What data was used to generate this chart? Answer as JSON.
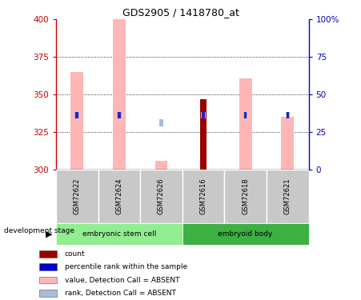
{
  "title": "GDS2905 / 1418780_at",
  "samples": [
    "GSM72622",
    "GSM72624",
    "GSM72626",
    "GSM72616",
    "GSM72618",
    "GSM72621"
  ],
  "ylim_left": [
    300,
    400
  ],
  "ylim_right": [
    0,
    100
  ],
  "yticks_left": [
    300,
    325,
    350,
    375,
    400
  ],
  "yticks_right": [
    0,
    25,
    50,
    75,
    100
  ],
  "ytick_labels_right": [
    "0",
    "25",
    "50",
    "75",
    "100%"
  ],
  "pink_bar_color": "#FFB6B6",
  "red_bar_color": "#990000",
  "blue_square_color": "#2222CC",
  "light_blue_color": "#AABBDD",
  "value_absent": [
    365,
    400,
    306,
    300,
    361,
    335
  ],
  "rank_absent_y": [
    334,
    334,
    329,
    334,
    334,
    334
  ],
  "count_top": [
    300,
    300,
    300,
    347,
    300,
    300
  ],
  "has_blue_square": [
    true,
    true,
    false,
    true,
    true,
    true
  ],
  "group_light_green": "#90EE90",
  "group_dark_green": "#3CB043",
  "group_bg_color": "#C8C8C8",
  "axis_left_color": "#CC0000",
  "axis_right_color": "#0000CC",
  "legend_items": [
    {
      "label": "count",
      "color": "#990000"
    },
    {
      "label": "percentile rank within the sample",
      "color": "#0000CC"
    },
    {
      "label": "value, Detection Call = ABSENT",
      "color": "#FFB6B6"
    },
    {
      "label": "rank, Detection Call = ABSENT",
      "color": "#AABBDD"
    }
  ]
}
